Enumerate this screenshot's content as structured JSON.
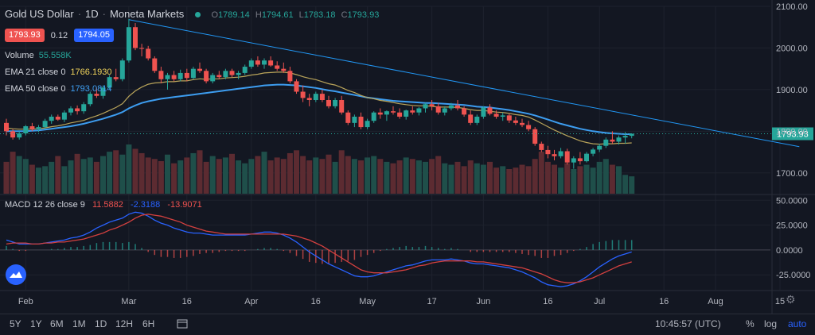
{
  "header": {
    "symbol": "Gold US Dollar",
    "interval": "1D",
    "broker": "Moneta Markets",
    "ohlc": [
      {
        "k": "O",
        "v": "1789.14"
      },
      {
        "k": "H",
        "v": "1794.61"
      },
      {
        "k": "L",
        "v": "1783.18"
      },
      {
        "k": "C",
        "v": "1793.93"
      }
    ]
  },
  "quote": {
    "sell": "1793.93",
    "spread": "0.12",
    "buy": "1794.05"
  },
  "indicators": {
    "volume": {
      "label": "Volume",
      "value": "55.558K",
      "color": "#26a69a"
    },
    "ema21": {
      "label": "EMA 21 close 0",
      "value": "1766.1930",
      "color": "#f0d35b"
    },
    "ema50": {
      "label": "EMA 50 close 0",
      "value": "1793.0814",
      "color": "#3d9df0"
    },
    "macd": {
      "label": "MACD 12 26 close 9",
      "values": [
        {
          "v": "11.5882",
          "color": "#ef5350"
        },
        {
          "v": "-2.3188",
          "color": "#2962ff"
        },
        {
          "v": "-13.9071",
          "color": "#ef5350"
        }
      ]
    }
  },
  "colors": {
    "up": "#26a69a",
    "down": "#ef5350",
    "bg": "#131722",
    "grid": "#1e222d",
    "trend": "#2196f3"
  },
  "toolbar": {
    "timeframes": [
      "5Y",
      "1Y",
      "6M",
      "1M",
      "1D",
      "12H",
      "6H"
    ],
    "clock": "10:45:57 (UTC)",
    "right": [
      "%",
      "log",
      "auto"
    ]
  },
  "chart_data": {
    "type": "candlestick",
    "x_ticks": [
      "Feb",
      "Mar",
      "16",
      "Apr",
      "16",
      "May",
      "17",
      "Jun",
      "16",
      "Jul",
      "16",
      "Aug",
      "15"
    ],
    "price_axis": {
      "ticks": [
        1700,
        1800,
        1900,
        2000,
        2100
      ],
      "ylim": [
        1650,
        2100
      ],
      "last_price_label": "1793.93",
      "last_price": 1793.93
    },
    "macd_axis": {
      "ticks": [
        "50.0000",
        "25.0000",
        "0.0000",
        "-25.0000"
      ],
      "tick_values": [
        50,
        25,
        0,
        -25
      ],
      "ylim": [
        -40,
        55
      ]
    },
    "candles": [
      [
        1820,
        1830,
        1790,
        1800
      ],
      [
        1800,
        1805,
        1780,
        1785
      ],
      [
        1785,
        1800,
        1780,
        1795
      ],
      [
        1795,
        1815,
        1790,
        1812
      ],
      [
        1812,
        1820,
        1800,
        1805
      ],
      [
        1805,
        1815,
        1798,
        1810
      ],
      [
        1810,
        1830,
        1805,
        1825
      ],
      [
        1825,
        1840,
        1818,
        1835
      ],
      [
        1835,
        1840,
        1825,
        1828
      ],
      [
        1828,
        1850,
        1822,
        1845
      ],
      [
        1845,
        1860,
        1838,
        1855
      ],
      [
        1855,
        1862,
        1840,
        1848
      ],
      [
        1848,
        1870,
        1842,
        1865
      ],
      [
        1865,
        1895,
        1860,
        1890
      ],
      [
        1890,
        1905,
        1880,
        1885
      ],
      [
        1885,
        1910,
        1878,
        1905
      ],
      [
        1905,
        1935,
        1900,
        1930
      ],
      [
        1930,
        1950,
        1920,
        1925
      ],
      [
        1925,
        1975,
        1920,
        1970
      ],
      [
        1970,
        2070,
        1965,
        2050
      ],
      [
        2050,
        2060,
        1995,
        2000
      ],
      [
        2000,
        2010,
        1980,
        1998
      ],
      [
        1998,
        2005,
        1970,
        1975
      ],
      [
        1975,
        1980,
        1940,
        1945
      ],
      [
        1945,
        1955,
        1915,
        1925
      ],
      [
        1925,
        1940,
        1900,
        1935
      ],
      [
        1935,
        1945,
        1920,
        1925
      ],
      [
        1925,
        1948,
        1920,
        1940
      ],
      [
        1940,
        1950,
        1920,
        1928
      ],
      [
        1928,
        1955,
        1925,
        1950
      ],
      [
        1950,
        1965,
        1940,
        1945
      ],
      [
        1945,
        1950,
        1915,
        1920
      ],
      [
        1920,
        1940,
        1915,
        1935
      ],
      [
        1935,
        1945,
        1925,
        1930
      ],
      [
        1930,
        1950,
        1925,
        1945
      ],
      [
        1945,
        1950,
        1930,
        1935
      ],
      [
        1935,
        1945,
        1925,
        1940
      ],
      [
        1940,
        1960,
        1935,
        1955
      ],
      [
        1955,
        1975,
        1950,
        1970
      ],
      [
        1970,
        1980,
        1955,
        1960
      ],
      [
        1960,
        1975,
        1950,
        1970
      ],
      [
        1970,
        1980,
        1955,
        1958
      ],
      [
        1958,
        1968,
        1945,
        1950
      ],
      [
        1950,
        1965,
        1940,
        1945
      ],
      [
        1945,
        1955,
        1915,
        1920
      ],
      [
        1920,
        1925,
        1890,
        1895
      ],
      [
        1895,
        1910,
        1870,
        1880
      ],
      [
        1880,
        1890,
        1860,
        1875
      ],
      [
        1875,
        1895,
        1870,
        1890
      ],
      [
        1890,
        1900,
        1870,
        1875
      ],
      [
        1875,
        1885,
        1855,
        1860
      ],
      [
        1860,
        1880,
        1855,
        1875
      ],
      [
        1875,
        1885,
        1840,
        1845
      ],
      [
        1845,
        1850,
        1815,
        1820
      ],
      [
        1820,
        1840,
        1810,
        1835
      ],
      [
        1835,
        1845,
        1805,
        1810
      ],
      [
        1810,
        1830,
        1805,
        1825
      ],
      [
        1825,
        1848,
        1820,
        1845
      ],
      [
        1845,
        1855,
        1830,
        1840
      ],
      [
        1840,
        1850,
        1825,
        1848
      ],
      [
        1848,
        1860,
        1840,
        1845
      ],
      [
        1845,
        1855,
        1830,
        1835
      ],
      [
        1835,
        1852,
        1828,
        1850
      ],
      [
        1850,
        1860,
        1840,
        1845
      ],
      [
        1845,
        1858,
        1838,
        1855
      ],
      [
        1855,
        1868,
        1845,
        1865
      ],
      [
        1865,
        1875,
        1850,
        1860
      ],
      [
        1860,
        1868,
        1840,
        1845
      ],
      [
        1845,
        1860,
        1838,
        1855
      ],
      [
        1855,
        1868,
        1850,
        1862
      ],
      [
        1862,
        1875,
        1850,
        1855
      ],
      [
        1855,
        1860,
        1835,
        1840
      ],
      [
        1840,
        1850,
        1815,
        1820
      ],
      [
        1820,
        1840,
        1815,
        1835
      ],
      [
        1835,
        1860,
        1830,
        1857
      ],
      [
        1857,
        1865,
        1838,
        1842
      ],
      [
        1842,
        1850,
        1830,
        1835
      ],
      [
        1835,
        1845,
        1825,
        1838
      ],
      [
        1838,
        1842,
        1820,
        1826
      ],
      [
        1826,
        1835,
        1815,
        1820
      ],
      [
        1820,
        1830,
        1810,
        1815
      ],
      [
        1815,
        1825,
        1800,
        1805
      ],
      [
        1805,
        1810,
        1765,
        1770
      ],
      [
        1770,
        1775,
        1750,
        1755
      ],
      [
        1755,
        1765,
        1735,
        1745
      ],
      [
        1745,
        1755,
        1730,
        1740
      ],
      [
        1740,
        1760,
        1735,
        1752
      ],
      [
        1752,
        1758,
        1720,
        1725
      ],
      [
        1725,
        1740,
        1710,
        1735
      ],
      [
        1735,
        1750,
        1720,
        1728
      ],
      [
        1728,
        1750,
        1725,
        1746
      ],
      [
        1746,
        1760,
        1740,
        1756
      ],
      [
        1756,
        1770,
        1750,
        1765
      ],
      [
        1765,
        1785,
        1760,
        1780
      ],
      [
        1780,
        1800,
        1770,
        1775
      ],
      [
        1775,
        1790,
        1768,
        1785
      ],
      [
        1785,
        1798,
        1770,
        1789
      ],
      [
        1789,
        1795,
        1783,
        1794
      ]
    ],
    "volume": [
      44,
      58,
      52,
      48,
      40,
      36,
      38,
      44,
      52,
      38,
      46,
      55,
      48,
      50,
      44,
      52,
      58,
      60,
      54,
      68,
      62,
      56,
      50,
      48,
      45,
      54,
      42,
      46,
      50,
      56,
      60,
      44,
      52,
      48,
      50,
      55,
      46,
      42,
      48,
      52,
      58,
      46,
      50,
      48,
      56,
      60,
      52,
      46,
      50,
      48,
      54,
      44,
      60,
      52,
      48,
      46,
      50,
      52,
      48,
      44,
      42,
      46,
      50,
      48,
      46,
      44,
      48,
      52,
      42,
      40,
      44,
      38,
      46,
      42,
      40,
      44,
      36,
      38,
      34,
      36,
      40,
      38,
      48,
      58,
      44,
      40,
      36,
      42,
      34,
      38,
      40,
      36,
      44,
      48,
      40,
      38,
      26,
      24
    ],
    "ema21": [
      1808,
      1806,
      1805,
      1805,
      1805,
      1806,
      1808,
      1811,
      1813,
      1816,
      1820,
      1823,
      1826,
      1832,
      1837,
      1843,
      1850,
      1857,
      1866,
      1884,
      1897,
      1906,
      1913,
      1916,
      1917,
      1919,
      1919,
      1921,
      1921,
      1924,
      1926,
      1925,
      1926,
      1926,
      1928,
      1929,
      1930,
      1932,
      1935,
      1937,
      1940,
      1941,
      1942,
      1942,
      1940,
      1936,
      1931,
      1927,
      1924,
      1919,
      1914,
      1911,
      1905,
      1898,
      1893,
      1886,
      1881,
      1878,
      1874,
      1872,
      1869,
      1866,
      1864,
      1862,
      1861,
      1861,
      1860,
      1858,
      1858,
      1858,
      1857,
      1855,
      1852,
      1850,
      1850,
      1848,
      1846,
      1845,
      1843,
      1840,
      1838,
      1834,
      1827,
      1819,
      1811,
      1803,
      1796,
      1789,
      1783,
      1777,
      1773,
      1770,
      1769,
      1770,
      1770,
      1771,
      1771,
      1772
    ],
    "ema50": [
      1800,
      1800,
      1800,
      1800,
      1801,
      1802,
      1804,
      1806,
      1808,
      1810,
      1812,
      1815,
      1818,
      1822,
      1826,
      1830,
      1835,
      1840,
      1846,
      1855,
      1862,
      1868,
      1872,
      1875,
      1878,
      1880,
      1882,
      1884,
      1886,
      1888,
      1890,
      1892,
      1894,
      1896,
      1898,
      1900,
      1902,
      1904,
      1906,
      1908,
      1910,
      1911,
      1912,
      1912,
      1911,
      1910,
      1908,
      1906,
      1904,
      1901,
      1898,
      1896,
      1893,
      1890,
      1887,
      1884,
      1881,
      1879,
      1877,
      1875,
      1873,
      1872,
      1871,
      1870,
      1869,
      1868,
      1868,
      1867,
      1866,
      1865,
      1864,
      1863,
      1861,
      1859,
      1858,
      1857,
      1855,
      1853,
      1851,
      1848,
      1845,
      1842,
      1838,
      1833,
      1828,
      1823,
      1818,
      1814,
      1810,
      1806,
      1803,
      1800,
      1798,
      1796,
      1795,
      1794,
      1793,
      1793
    ],
    "macd": [
      10,
      8,
      6,
      6,
      6,
      6,
      7,
      8,
      9,
      10,
      12,
      13,
      15,
      18,
      22,
      25,
      28,
      30,
      32,
      36,
      38,
      37,
      34,
      30,
      27,
      25,
      22,
      20,
      18,
      17,
      17,
      16,
      15,
      15,
      15,
      15,
      15,
      15,
      16,
      17,
      18,
      18,
      17,
      15,
      12,
      8,
      3,
      -2,
      -6,
      -10,
      -14,
      -17,
      -20,
      -23,
      -26,
      -27,
      -27,
      -26,
      -24,
      -22,
      -20,
      -18,
      -16,
      -15,
      -13,
      -11,
      -10,
      -10,
      -10,
      -9,
      -10,
      -11,
      -13,
      -14,
      -14,
      -15,
      -16,
      -17,
      -18,
      -20,
      -22,
      -25,
      -28,
      -32,
      -35,
      -36,
      -37,
      -36,
      -34,
      -31,
      -27,
      -22,
      -17,
      -13,
      -9,
      -6,
      -4,
      -2
    ],
    "signal": [
      6,
      7,
      7,
      7,
      6,
      6,
      7,
      7,
      8,
      8,
      9,
      10,
      11,
      13,
      15,
      17,
      20,
      22,
      25,
      28,
      32,
      35,
      36,
      35,
      34,
      32,
      30,
      28,
      25,
      23,
      21,
      19,
      18,
      17,
      16,
      16,
      16,
      16,
      16,
      16,
      16,
      16,
      16,
      16,
      15,
      14,
      12,
      10,
      7,
      4,
      0,
      -4,
      -8,
      -12,
      -16,
      -20,
      -22,
      -23,
      -23,
      -23,
      -22,
      -21,
      -20,
      -18,
      -16,
      -15,
      -13,
      -12,
      -11,
      -11,
      -11,
      -11,
      -11,
      -12,
      -12,
      -13,
      -14,
      -15,
      -16,
      -17,
      -18,
      -20,
      -22,
      -24,
      -27,
      -30,
      -32,
      -33,
      -33,
      -32,
      -30,
      -28,
      -25,
      -22,
      -19,
      -16,
      -14,
      -12
    ],
    "trendline": {
      "from": {
        "i": 19,
        "price": 2068
      },
      "to": {
        "i": 123,
        "price": 1763
      }
    },
    "x_tick_index": [
      3,
      19,
      28,
      38,
      48,
      56,
      66,
      74,
      84,
      92,
      102,
      110,
      120
    ]
  }
}
